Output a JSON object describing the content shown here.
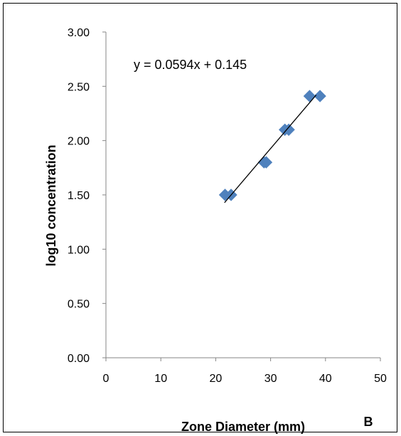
{
  "chart_data": {
    "type": "scatter",
    "xlabel": "Zone Diameter (mm)",
    "ylabel": "log10 concentration",
    "panel_label": "B",
    "xlim": [
      0,
      50
    ],
    "ylim": [
      0,
      3
    ],
    "x_ticks": [
      "0",
      "10",
      "20",
      "30",
      "40",
      "50"
    ],
    "y_ticks": [
      "0.00",
      "0.50",
      "1.00",
      "1.50",
      "2.00",
      "2.50",
      "3.00"
    ],
    "grid": false,
    "legend": "none",
    "series": [
      {
        "marker": "diamond",
        "color": "#4F81BD",
        "points": [
          {
            "x": 21.7,
            "y": 1.5
          },
          {
            "x": 22.8,
            "y": 1.5
          },
          {
            "x": 28.8,
            "y": 1.8
          },
          {
            "x": 29.2,
            "y": 1.8
          },
          {
            "x": 32.6,
            "y": 2.1
          },
          {
            "x": 33.3,
            "y": 2.1
          },
          {
            "x": 37.1,
            "y": 2.41
          },
          {
            "x": 39.0,
            "y": 2.41
          }
        ]
      }
    ],
    "trendline": {
      "type": "linear",
      "slope": 0.0594,
      "intercept": 0.145,
      "x_range": [
        21.6,
        38.3
      ],
      "equation_text": "y = 0.0594x + 0.145"
    }
  }
}
